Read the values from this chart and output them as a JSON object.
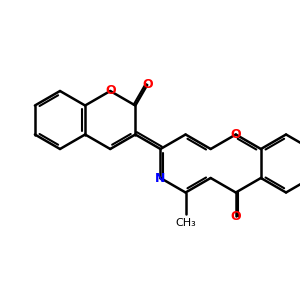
{
  "bg_color": "#ffffff",
  "bond_color": "#000000",
  "N_color": "#0000ff",
  "O_color": "#ff0000",
  "lw": 1.8,
  "lw_inner": 1.5,
  "figsize": [
    3.0,
    3.0
  ],
  "dpi": 100,
  "xlim": [
    0,
    6
  ],
  "ylim": [
    0,
    6
  ],
  "bl": 0.58,
  "io": 0.055
}
